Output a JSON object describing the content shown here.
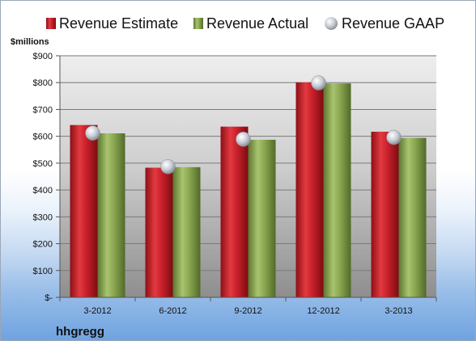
{
  "chart_data": {
    "type": "bar",
    "unit_label": "$millions",
    "company": "hhgregg",
    "categories": [
      "3-2012",
      "6-2012",
      "9-2012",
      "12-2012",
      "3-2013"
    ],
    "y_tick_labels": [
      "$-",
      "$100",
      "$200",
      "$300",
      "$400",
      "$500",
      "$600",
      "$700",
      "$800",
      "$900"
    ],
    "ylim": [
      0,
      900
    ],
    "grid": true,
    "legend_position": "top",
    "series": [
      {
        "name": "Revenue Estimate",
        "kind": "bar",
        "color": "#c8202a",
        "values": [
          642,
          483,
          636,
          801,
          617
        ]
      },
      {
        "name": "Revenue Actual",
        "kind": "bar",
        "color": "#8aa650",
        "values": [
          611,
          485,
          587,
          797,
          594
        ]
      },
      {
        "name": "Revenue GAAP",
        "kind": "marker",
        "color": "#c0c4cc",
        "values": [
          612,
          487,
          589,
          799,
          596
        ]
      }
    ]
  }
}
